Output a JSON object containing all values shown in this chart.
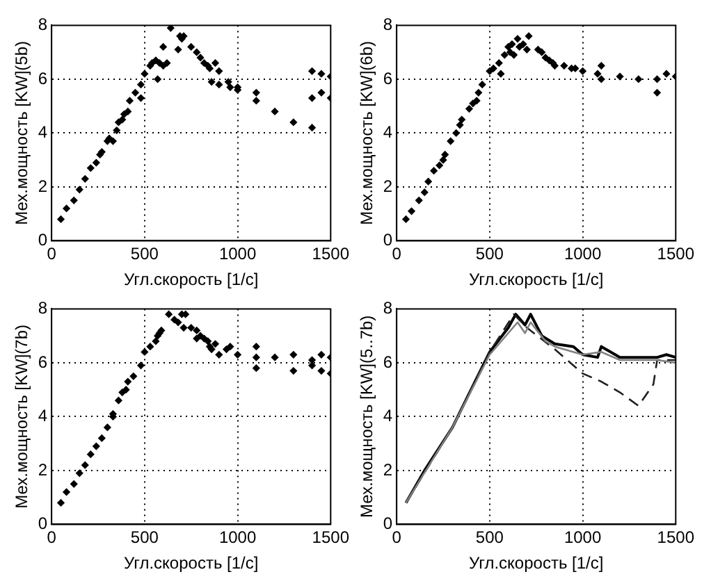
{
  "chart_data": [
    {
      "type": "scatter",
      "xlabel": "Угл.скорость [1/c]",
      "ylabel": "Мех.мощность [KW](5b)",
      "xlim": [
        0,
        1500
      ],
      "xticks": [
        0,
        500,
        1000,
        1500
      ],
      "ylim": [
        0,
        8
      ],
      "yticks": [
        0,
        2,
        4,
        6,
        8
      ],
      "grid": true,
      "marker": "diamond",
      "legend": false,
      "series": [
        {
          "color": "#000000",
          "x": [
            50,
            80,
            120,
            150,
            180,
            210,
            240,
            260,
            270,
            300,
            310,
            330,
            350,
            360,
            380,
            390,
            410,
            420,
            450,
            480,
            480,
            500,
            530,
            540,
            560,
            570,
            580,
            600,
            600,
            620,
            640,
            680,
            690,
            700,
            710,
            750,
            780,
            800,
            820,
            840,
            850,
            860,
            880,
            900,
            900,
            950,
            960,
            1000,
            1000,
            1100,
            1100,
            1200,
            1300,
            1400,
            1400,
            1400,
            1450,
            1450,
            1500,
            1500
          ],
          "values": [
            0.8,
            1.2,
            1.5,
            1.9,
            2.3,
            2.7,
            2.9,
            3.2,
            3.3,
            3.7,
            3.8,
            3.7,
            4.1,
            4.4,
            4.5,
            4.7,
            4.8,
            5.2,
            5.5,
            5.8,
            5.3,
            6.2,
            6.5,
            6.6,
            6.7,
            6.0,
            6.6,
            7.2,
            6.5,
            6.6,
            7.9,
            7.1,
            7.6,
            7.5,
            7.6,
            7.2,
            7.0,
            6.8,
            6.6,
            6.5,
            6.4,
            5.9,
            6.6,
            6.3,
            5.8,
            5.9,
            5.7,
            5.6,
            5.7,
            5.5,
            5.2,
            4.8,
            4.4,
            4.2,
            5.3,
            6.3,
            6.2,
            5.5,
            6.1,
            5.3
          ]
        }
      ]
    },
    {
      "type": "scatter",
      "xlabel": "Угл.скорость [1/c]",
      "ylabel": "Мех.мощность [KW](6b)",
      "xlim": [
        0,
        1500
      ],
      "xticks": [
        0,
        500,
        1000,
        1500
      ],
      "ylim": [
        0,
        8
      ],
      "yticks": [
        0,
        2,
        4,
        6,
        8
      ],
      "grid": true,
      "marker": "diamond",
      "legend": false,
      "series": [
        {
          "color": "#000000",
          "x": [
            50,
            80,
            120,
            150,
            170,
            200,
            230,
            250,
            260,
            290,
            320,
            340,
            350,
            390,
            410,
            430,
            440,
            460,
            500,
            520,
            550,
            560,
            580,
            600,
            610,
            620,
            630,
            650,
            660,
            680,
            700,
            710,
            760,
            780,
            800,
            820,
            840,
            850,
            900,
            940,
            960,
            1000,
            1080,
            1100,
            1100,
            1200,
            1300,
            1400,
            1400,
            1450,
            1500
          ],
          "values": [
            0.8,
            1.1,
            1.5,
            1.8,
            2.2,
            2.6,
            2.8,
            3.0,
            3.2,
            3.7,
            4.0,
            4.3,
            4.5,
            4.9,
            5.1,
            5.2,
            5.5,
            5.8,
            6.3,
            6.4,
            6.6,
            6.2,
            6.9,
            7.2,
            7.0,
            7.3,
            6.9,
            7.5,
            7.2,
            7.3,
            7.1,
            7.6,
            7.1,
            7.0,
            6.8,
            6.7,
            6.6,
            6.5,
            6.5,
            6.4,
            6.4,
            6.3,
            6.2,
            6.5,
            6.0,
            6.1,
            6.0,
            6.0,
            5.5,
            6.2,
            6.1
          ]
        }
      ]
    },
    {
      "type": "scatter",
      "xlabel": "Угл.скорость [1/c]",
      "ylabel": "Мех.мощность [KW](7b)",
      "xlim": [
        0,
        1500
      ],
      "xticks": [
        0,
        500,
        1000,
        1500
      ],
      "ylim": [
        0,
        8
      ],
      "yticks": [
        0,
        2,
        4,
        6,
        8
      ],
      "grid": true,
      "marker": "diamond",
      "legend": false,
      "series": [
        {
          "color": "#000000",
          "x": [
            50,
            80,
            120,
            150,
            180,
            210,
            240,
            270,
            300,
            330,
            330,
            360,
            380,
            400,
            410,
            440,
            480,
            500,
            530,
            560,
            570,
            580,
            590,
            630,
            660,
            680,
            700,
            710,
            720,
            750,
            780,
            780,
            800,
            820,
            840,
            850,
            860,
            880,
            900,
            940,
            960,
            1000,
            1100,
            1100,
            1100,
            1200,
            1300,
            1300,
            1400,
            1400,
            1450,
            1450,
            1500,
            1500
          ],
          "values": [
            0.8,
            1.2,
            1.5,
            1.9,
            2.2,
            2.6,
            2.9,
            3.2,
            3.6,
            4.0,
            4.1,
            4.6,
            4.9,
            5.0,
            5.3,
            5.5,
            5.9,
            6.4,
            6.6,
            6.8,
            7.0,
            7.1,
            7.2,
            7.8,
            7.6,
            7.5,
            7.8,
            7.3,
            7.8,
            7.3,
            7.2,
            6.9,
            7.0,
            6.9,
            6.8,
            6.6,
            6.5,
            6.7,
            6.3,
            6.5,
            6.6,
            6.3,
            6.6,
            6.2,
            5.8,
            6.2,
            6.3,
            5.7,
            6.1,
            5.9,
            6.3,
            5.7,
            6.2,
            5.6
          ]
        }
      ]
    },
    {
      "type": "line",
      "xlabel": "Угл.скорость [1/c]",
      "ylabel": "Мех.мощность [KW](5..7b)",
      "xlim": [
        0,
        1500
      ],
      "xticks": [
        0,
        500,
        1000,
        1500
      ],
      "ylim": [
        0,
        8
      ],
      "yticks": [
        0,
        2,
        4,
        6,
        8
      ],
      "grid": true,
      "marker": "none",
      "legend": false,
      "series": [
        {
          "color": "#808080",
          "line_style": "solid",
          "x": [
            50,
            300,
            500,
            600,
            650,
            690,
            720,
            800,
            850,
            1000,
            1100,
            1200,
            1400,
            1500
          ],
          "values": [
            0.8,
            3.6,
            6.3,
            7.1,
            7.5,
            7.1,
            7.5,
            6.8,
            6.6,
            6.3,
            6.4,
            6.1,
            6.1,
            6.0
          ]
        },
        {
          "color": "#202020",
          "line_style": "dashed",
          "x": [
            50,
            300,
            500,
            630,
            700,
            850,
            1000,
            1100,
            1200,
            1300,
            1380,
            1400,
            1500
          ],
          "values": [
            0.8,
            3.6,
            6.4,
            7.8,
            7.3,
            6.5,
            5.6,
            5.3,
            4.9,
            4.4,
            5.2,
            6.1,
            6.1
          ]
        },
        {
          "color": "#000000",
          "line_style": "solid",
          "x": [
            50,
            150,
            300,
            400,
            500,
            600,
            640,
            690,
            720,
            780,
            850,
            950,
            1000,
            1080,
            1100,
            1200,
            1300,
            1400,
            1450,
            1500
          ],
          "values": [
            0.8,
            2.0,
            3.6,
            5.0,
            6.4,
            7.3,
            7.8,
            7.4,
            7.8,
            7.0,
            6.7,
            6.6,
            6.3,
            6.2,
            6.6,
            6.2,
            6.2,
            6.2,
            6.3,
            6.2
          ]
        }
      ]
    }
  ]
}
